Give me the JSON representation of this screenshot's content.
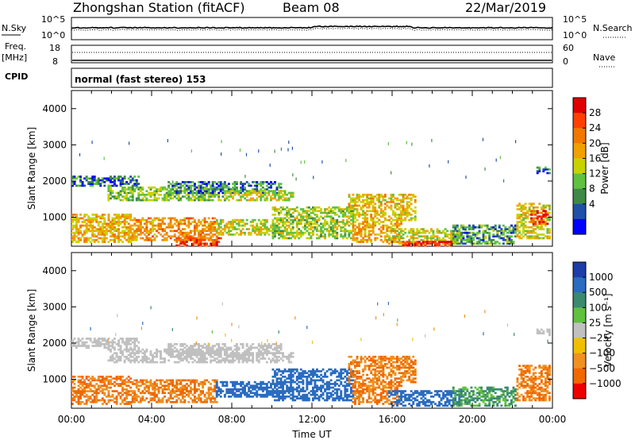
{
  "header": {
    "station": "Zhongshan Station (fitACF)",
    "beam": "Beam 08",
    "date": "22/Mar/2019"
  },
  "top_panels": {
    "nsky_label": "N.Sky",
    "nsearch_label": "N.Search",
    "freq_label_1": "Freq.",
    "freq_label_2": "[MHz]",
    "nave_label": "Nave",
    "cpid_label": "CPID",
    "mode_text": "normal (fast stereo) 153",
    "noise_ticks_left": [
      "10^5",
      "10^0"
    ],
    "noise_ticks_right": [
      "10^5",
      "10^0"
    ],
    "freq_ticks": [
      "18",
      "8"
    ],
    "nave_ticks": [
      "60",
      "0"
    ]
  },
  "colorbars": {
    "power": {
      "label": "Power [dB]",
      "ticks": [
        "28",
        "24",
        "20",
        "16",
        "12",
        "8",
        "4"
      ],
      "colors": [
        "#e00000",
        "#ff4000",
        "#f07800",
        "#f0a000",
        "#c8d200",
        "#60c040",
        "#408848",
        "#2050a8",
        "#0000ff"
      ]
    },
    "velocity": {
      "label": "Velocity [m s⁻¹]",
      "ticks": [
        "1000",
        "500",
        "100",
        "25",
        "−25",
        "−100",
        "−500",
        "−1000"
      ],
      "colors": [
        "#1f3da8",
        "#2a6cc0",
        "#3a8a70",
        "#60c040",
        "#c0c0c0",
        "#f0c000",
        "#f09020",
        "#f06800",
        "#ee0000"
      ]
    }
  },
  "chart_data": [
    {
      "type": "heatmap",
      "title": "Power",
      "ylabel": "Slant Range [km]",
      "ylim": [
        200,
        4500
      ],
      "y_ticks": [
        "4000",
        "3000",
        "2000",
        "1000"
      ],
      "xlim": [
        "00:00",
        "24:00"
      ],
      "x_ticks": [
        "00:00",
        "04:00",
        "08:00",
        "12:00",
        "16:00",
        "20:00",
        "00:00"
      ],
      "xlabel": "",
      "regions": [
        {
          "t0": 0.0,
          "t1": 3.4,
          "r0": 1850,
          "r1": 2150,
          "v": 5
        },
        {
          "t0": 1.8,
          "t1": 7.6,
          "r0": 1450,
          "r1": 1850,
          "v": 11
        },
        {
          "t0": 4.8,
          "t1": 10.4,
          "r0": 1650,
          "r1": 2000,
          "v": 7
        },
        {
          "t0": 7.7,
          "t1": 11.0,
          "r0": 1450,
          "r1": 1750,
          "v": 13
        },
        {
          "t0": 0.0,
          "t1": 3.0,
          "r0": 300,
          "r1": 1100,
          "v": 17
        },
        {
          "t0": 3.0,
          "t1": 7.2,
          "r0": 350,
          "r1": 1000,
          "v": 20
        },
        {
          "t0": 5.2,
          "t1": 7.4,
          "r0": 200,
          "r1": 450,
          "v": 27
        },
        {
          "t0": 7.2,
          "t1": 10.5,
          "r0": 500,
          "r1": 950,
          "v": 14
        },
        {
          "t0": 10.0,
          "t1": 14.0,
          "r0": 400,
          "r1": 1300,
          "v": 12
        },
        {
          "t0": 13.8,
          "t1": 17.2,
          "r0": 900,
          "r1": 1650,
          "v": 16
        },
        {
          "t0": 14.0,
          "t1": 16.5,
          "r0": 300,
          "r1": 900,
          "v": 19
        },
        {
          "t0": 15.8,
          "t1": 19.5,
          "r0": 250,
          "r1": 700,
          "v": 14
        },
        {
          "t0": 16.5,
          "t1": 19.0,
          "r0": 200,
          "r1": 350,
          "v": 28
        },
        {
          "t0": 19.0,
          "t1": 22.2,
          "r0": 250,
          "r1": 800,
          "v": 8
        },
        {
          "t0": 22.2,
          "t1": 23.9,
          "r0": 400,
          "r1": 1400,
          "v": 15
        },
        {
          "t0": 22.9,
          "t1": 23.8,
          "r0": 800,
          "r1": 1200,
          "v": 27
        },
        {
          "t0": 23.2,
          "t1": 23.9,
          "r0": 2200,
          "r1": 2400,
          "v": 5
        }
      ]
    },
    {
      "type": "heatmap",
      "title": "Velocity",
      "ylabel": "Slant Range [km]",
      "ylim": [
        200,
        4500
      ],
      "y_ticks": [
        "4000",
        "3000",
        "2000",
        "1000"
      ],
      "xlim": [
        "00:00",
        "24:00"
      ],
      "x_ticks": [
        "00:00",
        "04:00",
        "08:00",
        "12:00",
        "16:00",
        "20:00",
        "00:00"
      ],
      "xlabel": "Time UT",
      "regions": [
        {
          "t0": 0.0,
          "t1": 3.4,
          "r0": 1850,
          "r1": 2150,
          "v": 0
        },
        {
          "t0": 1.8,
          "t1": 7.6,
          "r0": 1450,
          "r1": 1850,
          "v": 0
        },
        {
          "t0": 4.8,
          "t1": 10.4,
          "r0": 1650,
          "r1": 2000,
          "v": 0
        },
        {
          "t0": 7.7,
          "t1": 11.0,
          "r0": 1450,
          "r1": 1750,
          "v": 0
        },
        {
          "t0": 0.0,
          "t1": 3.0,
          "r0": 300,
          "r1": 1100,
          "v": -300
        },
        {
          "t0": 3.0,
          "t1": 7.2,
          "r0": 350,
          "r1": 1000,
          "v": -300
        },
        {
          "t0": 7.2,
          "t1": 10.5,
          "r0": 500,
          "r1": 950,
          "v": 300
        },
        {
          "t0": 10.0,
          "t1": 14.0,
          "r0": 400,
          "r1": 1300,
          "v": 300
        },
        {
          "t0": 13.8,
          "t1": 17.2,
          "r0": 900,
          "r1": 1650,
          "v": -300
        },
        {
          "t0": 14.0,
          "t1": 16.5,
          "r0": 300,
          "r1": 900,
          "v": -300
        },
        {
          "t0": 15.8,
          "t1": 19.5,
          "r0": 250,
          "r1": 700,
          "v": 300
        },
        {
          "t0": 19.0,
          "t1": 22.2,
          "r0": 250,
          "r1": 800,
          "v": 60
        },
        {
          "t0": 22.2,
          "t1": 23.9,
          "r0": 400,
          "r1": 1400,
          "v": -300
        },
        {
          "t0": 23.2,
          "t1": 23.9,
          "r0": 2200,
          "r1": 2400,
          "v": 0
        }
      ]
    }
  ]
}
